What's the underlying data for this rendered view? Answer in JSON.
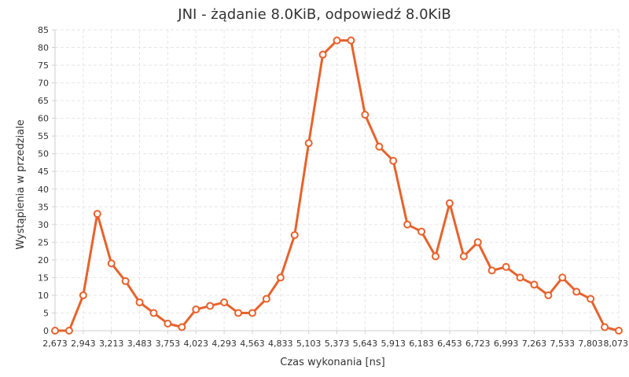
{
  "chart_data": {
    "type": "line",
    "title": "JNI - żądanie 8.0KiB, odpowiedź 8.0KiB",
    "xlabel": "Czas wykonania [ns]",
    "ylabel": "Wystąpienia w przedziale",
    "xlim": [
      2673,
      8073
    ],
    "ylim": [
      0,
      85
    ],
    "x_ticks": [
      "2,673",
      "2,943",
      "3,213",
      "3,483",
      "3,753",
      "4,023",
      "4,293",
      "4,563",
      "4,833",
      "5,103",
      "5,373",
      "5,643",
      "5,913",
      "6,183",
      "6,453",
      "6,723",
      "6,993",
      "7,263",
      "7,533",
      "7,803",
      "8,073"
    ],
    "y_ticks": [
      0,
      5,
      10,
      15,
      20,
      25,
      30,
      35,
      40,
      45,
      50,
      55,
      60,
      65,
      70,
      75,
      80,
      85
    ],
    "grid": true,
    "colors": {
      "series": "#e8622c",
      "marker_fill": "#ffffff",
      "grid": "#e6e6e6",
      "axis": "#cfcfcf",
      "text": "#333333"
    },
    "series": [
      {
        "x": [
          2673,
          2808,
          2943,
          3078,
          3213,
          3348,
          3483,
          3618,
          3753,
          3888,
          4023,
          4158,
          4293,
          4428,
          4563,
          4698,
          4833,
          4968,
          5103,
          5238,
          5373,
          5508,
          5643,
          5778,
          5913,
          6048,
          6183,
          6318,
          6453,
          6588,
          6723,
          6858,
          6993,
          7128,
          7263,
          7398,
          7533,
          7668,
          7803,
          7938,
          8073
        ],
        "y": [
          0,
          0,
          10,
          33,
          19,
          14,
          8,
          5,
          2,
          1,
          6,
          7,
          8,
          5,
          5,
          9,
          15,
          27,
          53,
          78,
          82,
          82,
          61,
          52,
          48,
          30,
          28,
          21,
          36,
          21,
          25,
          17,
          18,
          15,
          13,
          10,
          15,
          11,
          9,
          1,
          0
        ]
      }
    ]
  }
}
